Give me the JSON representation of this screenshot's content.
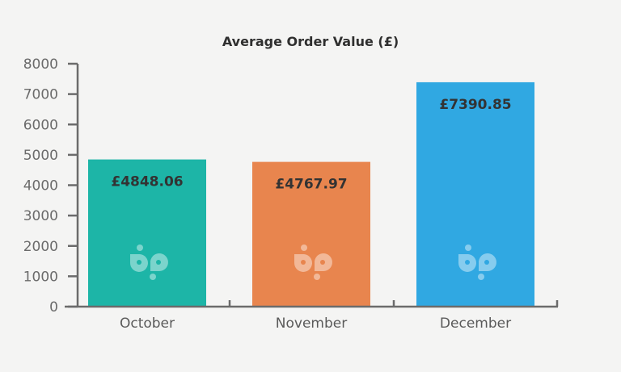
{
  "chart_data": {
    "type": "bar",
    "title": "Average Order Value (£)",
    "xlabel": "",
    "ylabel": "",
    "categories": [
      "October",
      "November",
      "December"
    ],
    "values": [
      4848.06,
      4767.97,
      7390.85
    ],
    "data_labels": [
      "£4848.06",
      "£4767.97",
      "£7390.85"
    ],
    "colors": [
      "#1db5a7",
      "#e8854e",
      "#30a8e2"
    ],
    "ylim": [
      0,
      8000
    ],
    "yticks": [
      0,
      1000,
      2000,
      3000,
      4000,
      5000,
      6000,
      7000,
      8000
    ],
    "grid": false,
    "legend": "none"
  }
}
